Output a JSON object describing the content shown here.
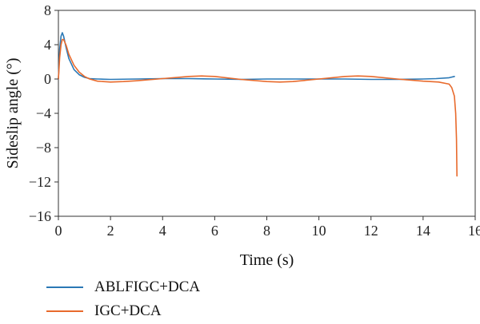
{
  "chart_data": {
    "type": "line",
    "xlabel": "Time (s)",
    "ylabel": "Sideslip angle (°)",
    "xlim": [
      0,
      16
    ],
    "ylim": [
      -16,
      8
    ],
    "xticks": [
      0,
      2,
      4,
      6,
      8,
      10,
      12,
      14,
      16
    ],
    "yticks": [
      8,
      4,
      0,
      -4,
      -8,
      -12,
      -16
    ],
    "ytick_labels": [
      "8",
      "4",
      "0",
      "−4",
      "−8",
      "−12",
      "−16"
    ],
    "grid": false,
    "legend_position": "bottom-left, below plot",
    "series": [
      {
        "name": "ABLFIGC+DCA",
        "color": "#2a78b5",
        "x": [
          0.0,
          0.05,
          0.1,
          0.15,
          0.2,
          0.3,
          0.4,
          0.6,
          0.8,
          1.0,
          1.2,
          1.5,
          2.0,
          3.0,
          4.0,
          5.0,
          6.0,
          7.0,
          8.0,
          9.0,
          10.0,
          11.0,
          12.0,
          13.0,
          14.0,
          14.5,
          15.0,
          15.2
        ],
        "y": [
          0.0,
          3.5,
          5.0,
          5.4,
          5.0,
          3.6,
          2.4,
          1.1,
          0.5,
          0.2,
          0.05,
          0.0,
          -0.05,
          0.0,
          0.05,
          0.05,
          0.0,
          -0.05,
          0.0,
          0.0,
          0.0,
          0.0,
          -0.05,
          -0.05,
          0.0,
          0.05,
          0.15,
          0.3
        ]
      },
      {
        "name": "IGC+DCA",
        "color": "#e86a2c",
        "x": [
          0.0,
          0.05,
          0.1,
          0.15,
          0.2,
          0.3,
          0.4,
          0.6,
          0.8,
          1.0,
          1.2,
          1.5,
          2.0,
          2.5,
          3.0,
          4.0,
          5.0,
          5.5,
          6.0,
          7.0,
          8.0,
          8.5,
          9.0,
          10.0,
          11.0,
          11.5,
          12.0,
          13.0,
          14.0,
          14.6,
          15.0,
          15.1,
          15.2,
          15.25,
          15.28,
          15.3
        ],
        "y": [
          0.0,
          2.5,
          4.0,
          4.6,
          4.6,
          3.9,
          2.9,
          1.6,
          0.8,
          0.3,
          0.0,
          -0.25,
          -0.35,
          -0.3,
          -0.2,
          0.05,
          0.3,
          0.35,
          0.3,
          -0.05,
          -0.3,
          -0.35,
          -0.3,
          0.0,
          0.3,
          0.35,
          0.3,
          0.0,
          -0.25,
          -0.35,
          -0.6,
          -1.0,
          -2.0,
          -4.0,
          -7.0,
          -11.3
        ]
      }
    ]
  }
}
